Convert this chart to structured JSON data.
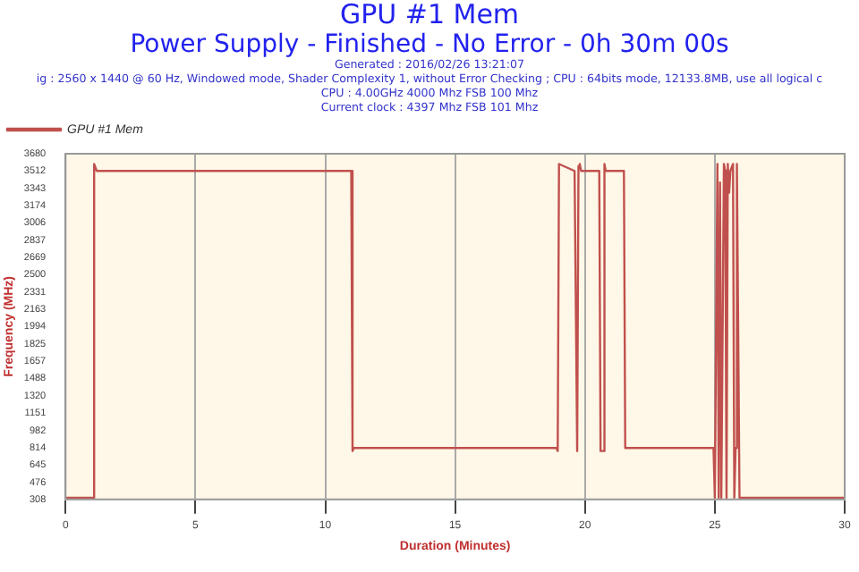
{
  "chart_data": {
    "type": "line",
    "title": "GPU #1 Mem",
    "subtitle": "Power Supply - Finished - No Error - 0h 30m 00s",
    "annotations": [
      "Generated : 2016/02/26 13:21:07",
      "ig : 2560 x 1440 @ 60 Hz, Windowed mode, Shader Complexity 1, without Error Checking ; CPU : 64bits mode, 12133.8MB, use all logical c",
      "CPU : 4.00GHz 4000 Mhz FSB 100 Mhz",
      "Current clock : 4397 Mhz FSB 101 Mhz"
    ],
    "xlabel": "Duration (Minutes)",
    "ylabel": "Frequency (MHz)",
    "series": [
      {
        "name": "GPU #1 Mem",
        "color": "#c0504d",
        "x": [
          0,
          1.1,
          1.1,
          1.2,
          11.0,
          11.05,
          11.1,
          18.9,
          18.95,
          19.0,
          19.6,
          19.65,
          19.7,
          19.75,
          19.8,
          19.85,
          19.9,
          20.55,
          20.6,
          20.7,
          20.75,
          20.8,
          21.5,
          21.55,
          24.95,
          25.0,
          25.1,
          25.15,
          25.2,
          25.25,
          25.35,
          25.4,
          25.45,
          25.5,
          25.55,
          25.6,
          25.7,
          25.75,
          25.8,
          25.85,
          25.95,
          26.0,
          30
        ],
        "values": [
          324,
          324,
          3580,
          3512,
          3512,
          780,
          810,
          810,
          780,
          3580,
          3512,
          3512,
          780,
          3560,
          3580,
          3512,
          3512,
          3512,
          780,
          780,
          3580,
          3512,
          3512,
          810,
          810,
          324,
          3580,
          324,
          3400,
          324,
          3580,
          3512,
          324,
          3580,
          3300,
          3512,
          3580,
          324,
          810,
          3580,
          324,
          324,
          324
        ]
      }
    ],
    "xlim": [
      0,
      30
    ],
    "xticks": [
      0,
      5,
      10,
      15,
      20,
      25,
      30
    ],
    "ylim": [
      308,
      3680
    ],
    "yticks": [
      308,
      476,
      645,
      814,
      982,
      1151,
      1320,
      1488,
      1657,
      1825,
      1994,
      2163,
      2331,
      2500,
      2669,
      2837,
      3006,
      3174,
      3343,
      3512,
      3680
    ],
    "grid": "x",
    "legend": "top left",
    "marker": "none",
    "line_style": "solid"
  }
}
